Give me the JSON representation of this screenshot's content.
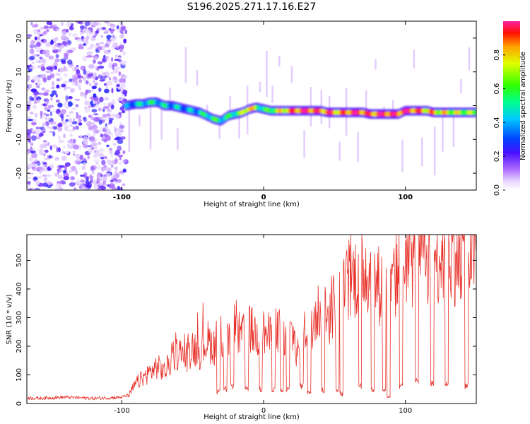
{
  "figure_title": "S196.2025.271.17.16.E27",
  "chart_data": [
    {
      "type": "heatmap",
      "title": "S196.2025.271.17.16.E27",
      "xlabel": "Height of straight line (km)",
      "ylabel": "Frequency (Hz)",
      "xlim": [
        -167,
        150
      ],
      "ylim": [
        -25,
        25
      ],
      "x_ticks": [
        -100,
        0,
        100
      ],
      "x_tick_labels": [
        "-100",
        "0",
        "100"
      ],
      "y_ticks": [
        -20,
        -10,
        0,
        10,
        20
      ],
      "y_tick_labels": [
        "-20",
        "-10",
        "0",
        "10",
        "20"
      ],
      "colorbar": {
        "label": "Normalized spectral amplitude",
        "range": [
          0,
          1
        ],
        "ticks": [
          0.0,
          0.2,
          0.4,
          0.6,
          0.8
        ],
        "tick_labels": [
          "0.0",
          "0.2",
          "0.4",
          "0.6",
          "0.8"
        ]
      },
      "noise_region_x": [
        -167,
        -97
      ],
      "ridge": {
        "x": [
          -97,
          -90,
          -85,
          -80,
          -75,
          -70,
          -65,
          -60,
          -55,
          -50,
          -45,
          -40,
          -35,
          -30,
          -25,
          -20,
          -15,
          -10,
          -5,
          0,
          5,
          10,
          15,
          20,
          25,
          30,
          35,
          40,
          45,
          50,
          55,
          60,
          65,
          70,
          75,
          80,
          85,
          90,
          95,
          100,
          105,
          110,
          115,
          120,
          125,
          130,
          135,
          140,
          145,
          150
        ],
        "frequency_hz": [
          0,
          0.5,
          0.5,
          1,
          1,
          0,
          0,
          -0.5,
          -1,
          -1.5,
          -2,
          -3,
          -4,
          -4.5,
          -3,
          -2.5,
          -2,
          -1,
          -0.5,
          -1,
          -1.5,
          -1.5,
          -1.5,
          -1.5,
          -1.5,
          -1.5,
          -1.5,
          -1.5,
          -2,
          -2,
          -2,
          -2,
          -2,
          -2,
          -2.5,
          -2.5,
          -2.5,
          -2.5,
          -2.5,
          -1.5,
          -1.5,
          -1.5,
          -1.5,
          -2,
          -2,
          -2,
          -2,
          -2,
          -2,
          -2
        ],
        "amplitude": [
          0.3,
          0.4,
          0.45,
          0.5,
          0.45,
          0.45,
          0.4,
          0.4,
          0.35,
          0.4,
          0.45,
          0.5,
          0.55,
          0.5,
          0.5,
          0.55,
          0.65,
          0.9,
          0.6,
          0.5,
          0.6,
          0.7,
          0.8,
          0.85,
          0.9,
          0.95,
          0.9,
          0.85,
          0.9,
          0.85,
          0.8,
          0.9,
          0.95,
          0.9,
          0.85,
          0.9,
          0.95,
          0.9,
          0.9,
          0.95,
          0.9,
          0.85,
          0.8,
          0.8,
          0.75,
          0.75,
          0.7,
          0.7,
          0.65,
          0.65
        ]
      }
    },
    {
      "type": "line",
      "xlabel": "Height of straight line (km)",
      "ylabel": "SNR (10 * v/v)",
      "xlim": [
        -167,
        150
      ],
      "ylim": [
        0,
        590
      ],
      "x_ticks": [
        -100,
        0,
        100
      ],
      "x_tick_labels": [
        "-100",
        "0",
        "100"
      ],
      "y_ticks": [
        0,
        100,
        200,
        300,
        400,
        500
      ],
      "y_tick_labels": [
        "0",
        "100",
        "200",
        "300",
        "400",
        "500"
      ],
      "series": [
        {
          "name": "SNR",
          "color": "#e8312a",
          "x": [
            -167,
            -160,
            -150,
            -140,
            -130,
            -120,
            -110,
            -100,
            -95,
            -90,
            -85,
            -80,
            -75,
            -70,
            -65,
            -60,
            -55,
            -50,
            -45,
            -40,
            -35,
            -30,
            -25,
            -20,
            -15,
            -10,
            -5,
            0,
            5,
            10,
            15,
            20,
            25,
            30,
            35,
            40,
            45,
            50,
            55,
            60,
            65,
            70,
            75,
            80,
            85,
            90,
            95,
            100,
            105,
            110,
            115,
            120,
            125,
            130,
            135,
            140,
            145,
            150
          ],
          "y": [
            20,
            18,
            20,
            22,
            20,
            18,
            20,
            22,
            30,
            70,
            90,
            110,
            130,
            110,
            150,
            180,
            160,
            200,
            180,
            220,
            200,
            230,
            210,
            250,
            230,
            260,
            240,
            250,
            230,
            260,
            220,
            250,
            160,
            270,
            300,
            330,
            300,
            350,
            380,
            420,
            450,
            480,
            460,
            420,
            400,
            380,
            480,
            520,
            500,
            540,
            520,
            530,
            520,
            540,
            520,
            530,
            540,
            540
          ],
          "dip_x": [
            -32,
            -27,
            -22,
            -12,
            -2,
            7,
            13,
            17,
            27,
            32,
            42,
            52,
            55,
            68,
            77,
            85,
            88,
            97,
            108,
            119,
            129,
            143
          ],
          "dip_y": [
            30,
            40,
            50,
            40,
            40,
            40,
            35,
            40,
            50,
            30,
            35,
            40,
            25,
            50,
            40,
            40,
            15,
            50,
            70,
            60,
            60,
            50
          ]
        }
      ]
    }
  ]
}
